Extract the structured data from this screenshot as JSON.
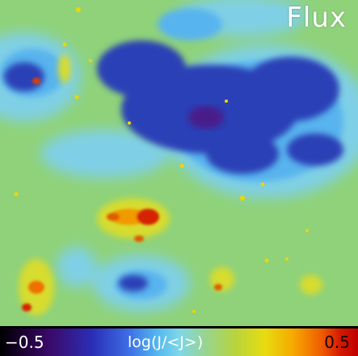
{
  "title": "Flux",
  "colorbar": {
    "min_label": "−0.5",
    "label": "log(J/<J>)",
    "max_label": "0.5"
  },
  "colors": {
    "low": "#2a2fb8",
    "mid_low": "#54b8f0",
    "mid": "#9ad48a",
    "high": "#e8dc10",
    "peak": "#d51a00"
  }
}
